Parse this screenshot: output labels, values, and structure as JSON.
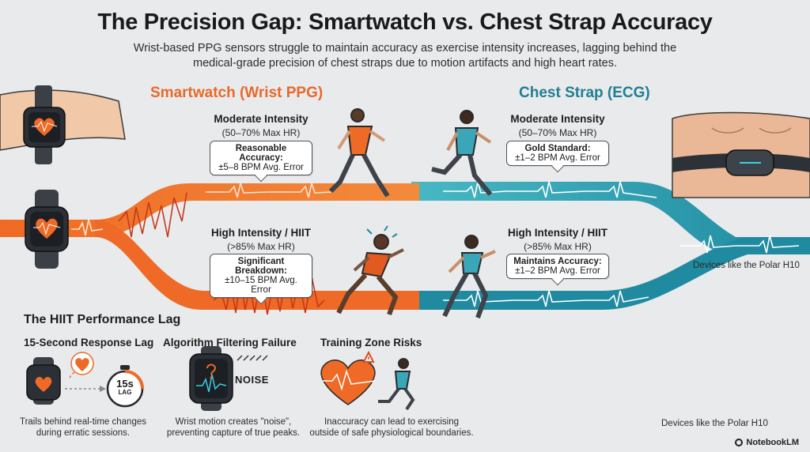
{
  "header": {
    "title": "The Precision Gap: Smartwatch vs. Chest Strap Accuracy",
    "subtitle": "Wrist-based PPG sensors struggle to maintain accuracy as exercise intensity increases, lagging behind the medical-grade precision of chest straps due to motion artifacts and high heart rates."
  },
  "smartwatch": {
    "heading": "Smartwatch (Wrist PPG)",
    "moderate": {
      "title": "Moderate Intensity",
      "range": "(50–70% Max HR)",
      "callout_title": "Reasonable Accuracy:",
      "callout_body": "±5–8 BPM Avg. Error"
    },
    "high": {
      "title": "High Intensity / HIIT",
      "range": "(>85% Max HR)",
      "callout_title": "Significant Breakdown:",
      "callout_body": "±10–15 BPM Avg. Error"
    }
  },
  "chest_strap": {
    "heading": "Chest Strap (ECG)",
    "moderate": {
      "title": "Moderate Intensity",
      "range": "(50–70% Max HR)",
      "callout_title": "Gold Standard:",
      "callout_body": "±1–2 BPM Avg. Error"
    },
    "high": {
      "title": "High Intensity / HIIT",
      "range": "(>85% Max HR)",
      "callout_title": "Maintains Accuracy:",
      "callout_body": "±1–2 BPM Avg. Error"
    },
    "device_note_1": "Devices like the Polar H10",
    "device_note_2": "Devices like the Polar H10"
  },
  "lag": {
    "heading": "The HIIT Performance Lag",
    "items": [
      {
        "title": "15-Second Response Lag",
        "badge_top": "15s",
        "badge_bottom": "LAG",
        "desc_line1": "Trails behind real-time changes",
        "desc_line2": "during erratic sessions."
      },
      {
        "title": "Algorithm Filtering Failure",
        "badge": "NOISE",
        "desc_line1": "Wrist motion creates \"noise\",",
        "desc_line2": "preventing capture of true peaks."
      },
      {
        "title": "Training Zone Risks",
        "desc_line1": "Inaccuracy can lead to exercising",
        "desc_line2": "outside of safe physiological boundaries."
      }
    ]
  },
  "brand": {
    "name": "NotebookLM"
  },
  "colors": {
    "orange": "#ee6a26",
    "teal": "#25a0b1",
    "teal_dark": "#1f7f92",
    "background": "#e9eaec"
  }
}
